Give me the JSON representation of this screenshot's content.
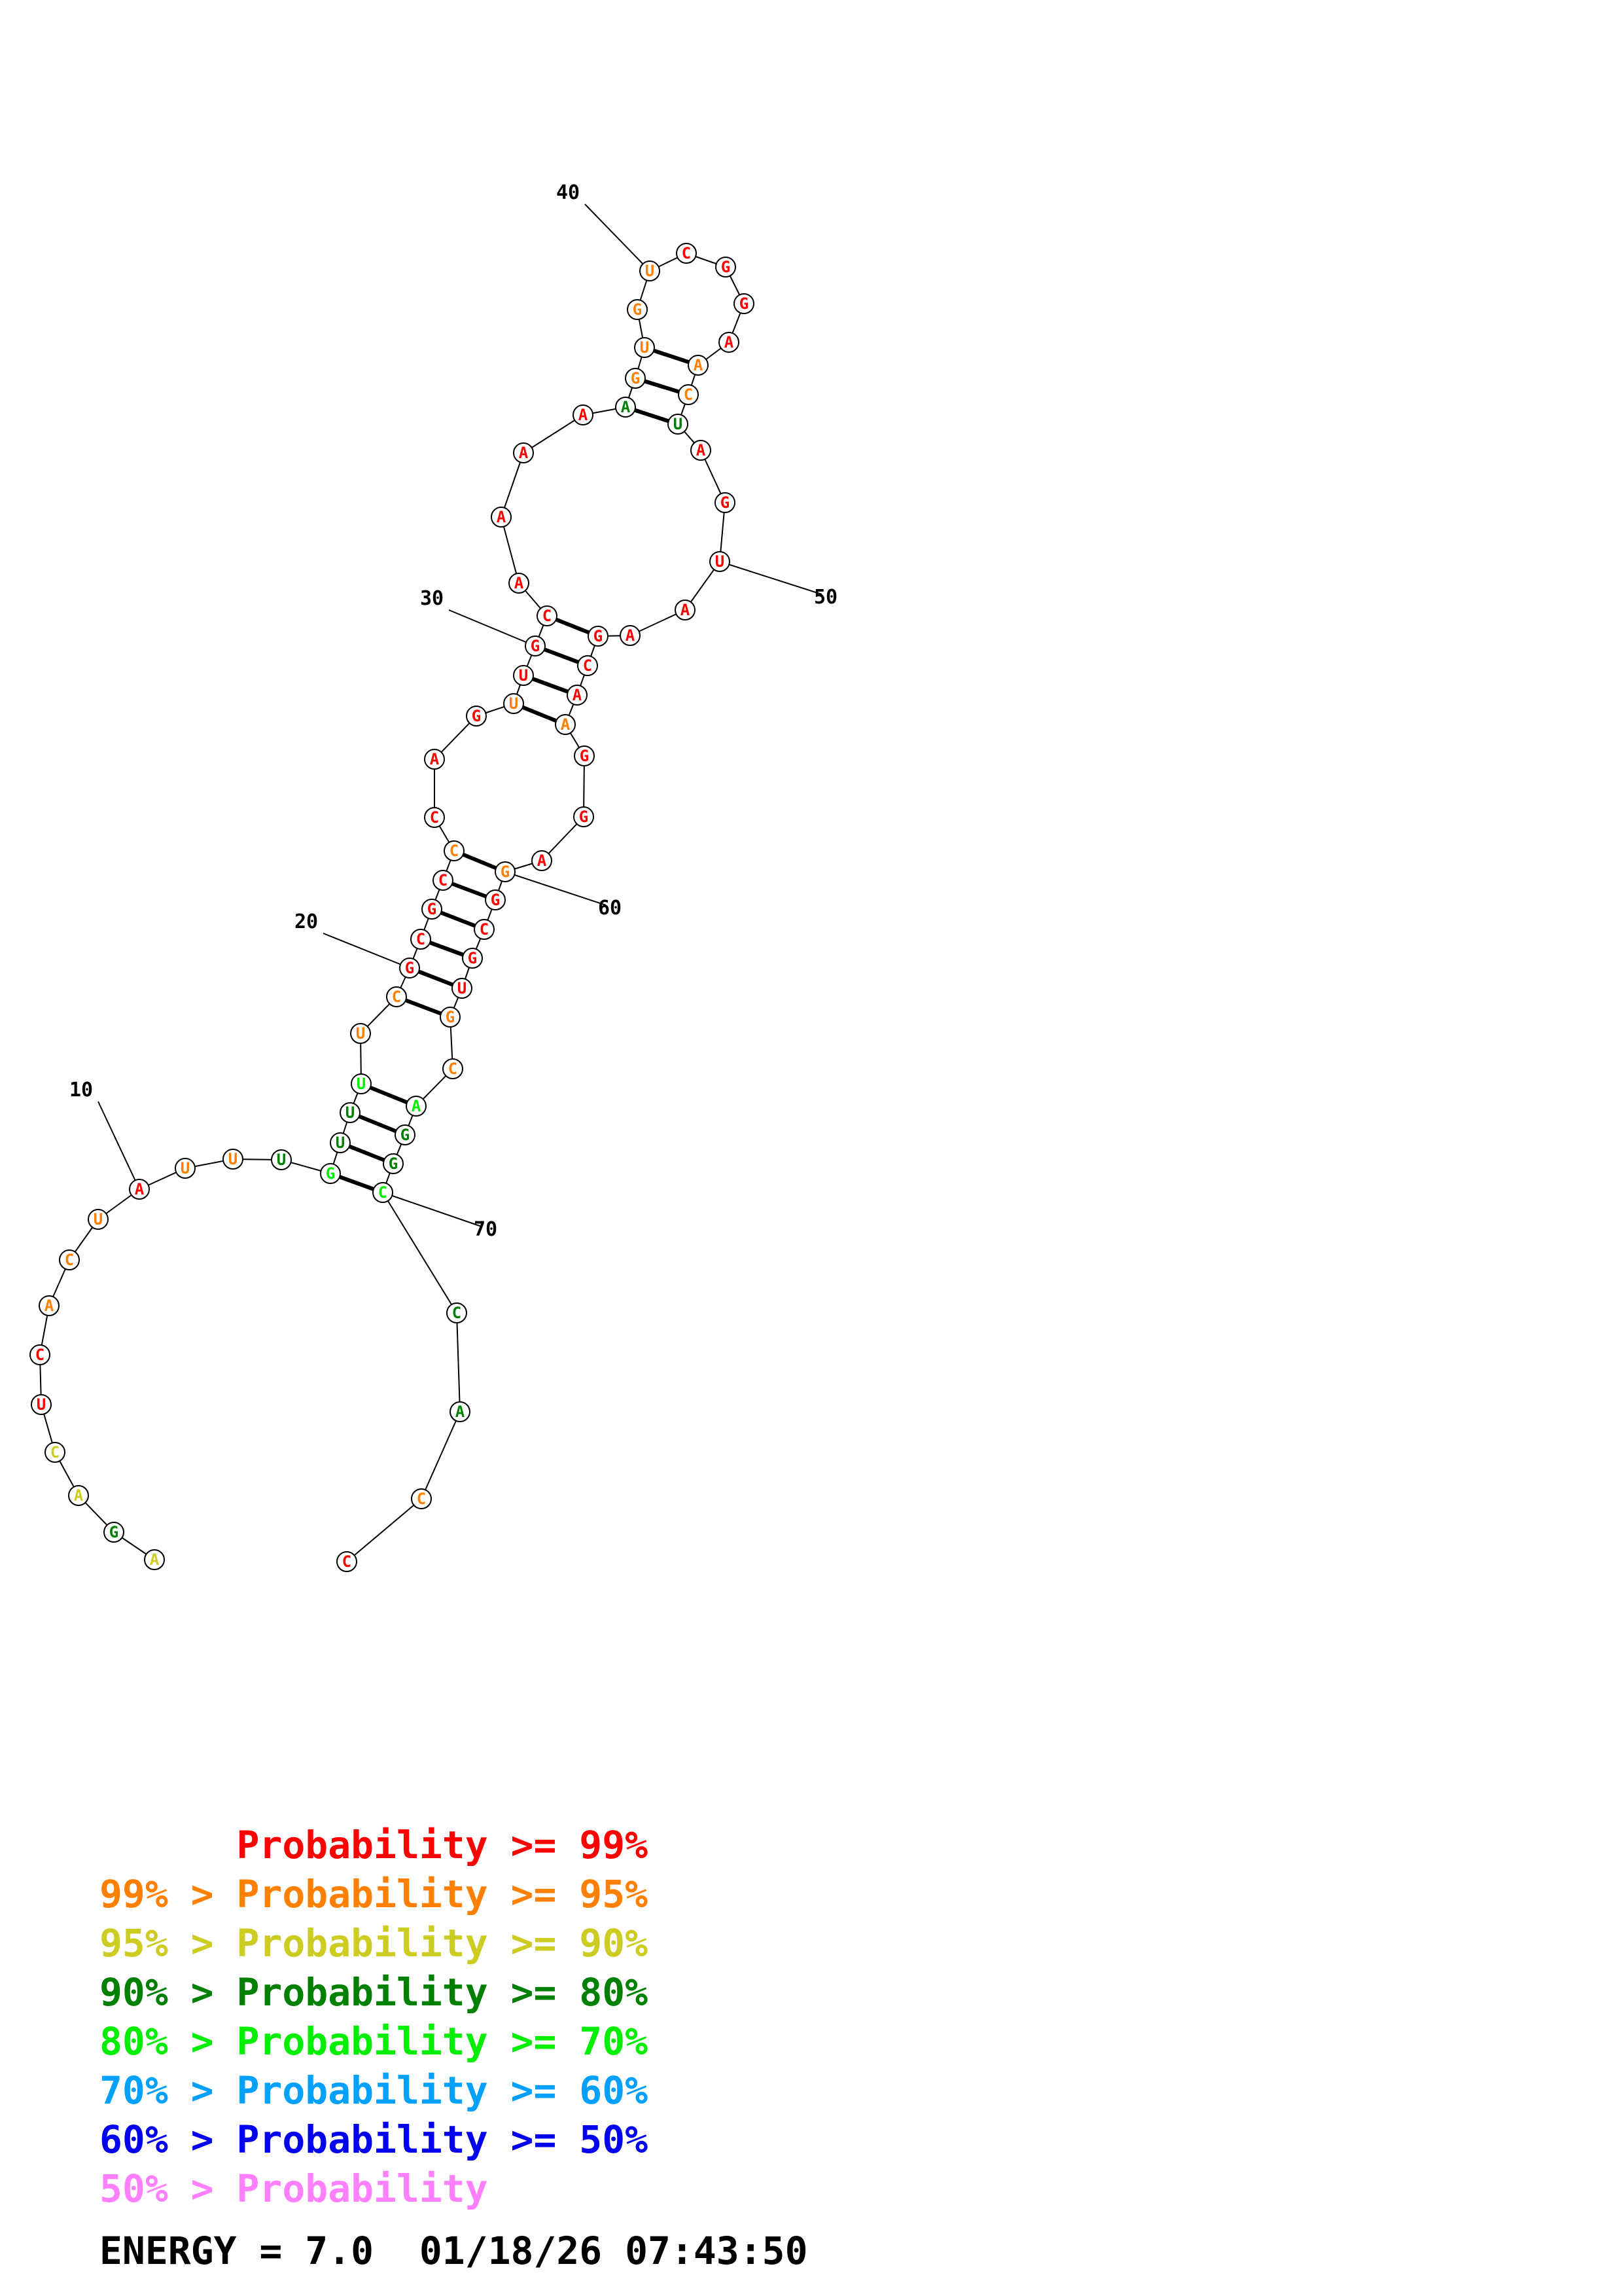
{
  "nucleotides": [
    {
      "n": 1,
      "b": "A",
      "c": "yellow"
    },
    {
      "n": 2,
      "b": "G",
      "c": "dgreen"
    },
    {
      "n": 3,
      "b": "A",
      "c": "yellow"
    },
    {
      "n": 4,
      "b": "C",
      "c": "yellow"
    },
    {
      "n": 5,
      "b": "U",
      "c": "red"
    },
    {
      "n": 6,
      "b": "C",
      "c": "red"
    },
    {
      "n": 7,
      "b": "A",
      "c": "orange"
    },
    {
      "n": 8,
      "b": "C",
      "c": "orange"
    },
    {
      "n": 9,
      "b": "U",
      "c": "orange"
    },
    {
      "n": 10,
      "b": "A",
      "c": "red"
    },
    {
      "n": 11,
      "b": "U",
      "c": "orange"
    },
    {
      "n": 12,
      "b": "U",
      "c": "orange"
    },
    {
      "n": 13,
      "b": "U",
      "c": "dgreen"
    },
    {
      "n": 14,
      "b": "G",
      "c": "lgreen"
    },
    {
      "n": 15,
      "b": "U",
      "c": "dgreen"
    },
    {
      "n": 16,
      "b": "U",
      "c": "dgreen"
    },
    {
      "n": 17,
      "b": "U",
      "c": "lgreen"
    },
    {
      "n": 18,
      "b": "U",
      "c": "orange"
    },
    {
      "n": 19,
      "b": "C",
      "c": "orange"
    },
    {
      "n": 20,
      "b": "G",
      "c": "red"
    },
    {
      "n": 21,
      "b": "C",
      "c": "red"
    },
    {
      "n": 22,
      "b": "G",
      "c": "red"
    },
    {
      "n": 23,
      "b": "C",
      "c": "red"
    },
    {
      "n": 24,
      "b": "C",
      "c": "orange"
    },
    {
      "n": 25,
      "b": "C",
      "c": "red"
    },
    {
      "n": 26,
      "b": "A",
      "c": "red"
    },
    {
      "n": 27,
      "b": "G",
      "c": "red"
    },
    {
      "n": 28,
      "b": "U",
      "c": "orange"
    },
    {
      "n": 29,
      "b": "U",
      "c": "red"
    },
    {
      "n": 30,
      "b": "G",
      "c": "red"
    },
    {
      "n": 31,
      "b": "C",
      "c": "red"
    },
    {
      "n": 32,
      "b": "A",
      "c": "red"
    },
    {
      "n": 33,
      "b": "A",
      "c": "red"
    },
    {
      "n": 34,
      "b": "A",
      "c": "red"
    },
    {
      "n": 35,
      "b": "A",
      "c": "red"
    },
    {
      "n": 36,
      "b": "A",
      "c": "dgreen"
    },
    {
      "n": 37,
      "b": "G",
      "c": "orange"
    },
    {
      "n": 38,
      "b": "U",
      "c": "orange"
    },
    {
      "n": 39,
      "b": "G",
      "c": "orange"
    },
    {
      "n": 40,
      "b": "U",
      "c": "orange"
    },
    {
      "n": 41,
      "b": "C",
      "c": "red"
    },
    {
      "n": 42,
      "b": "G",
      "c": "red"
    },
    {
      "n": 43,
      "b": "G",
      "c": "red"
    },
    {
      "n": 44,
      "b": "A",
      "c": "red"
    },
    {
      "n": 45,
      "b": "A",
      "c": "orange"
    },
    {
      "n": 46,
      "b": "C",
      "c": "orange"
    },
    {
      "n": 47,
      "b": "U",
      "c": "dgreen"
    },
    {
      "n": 48,
      "b": "A",
      "c": "red"
    },
    {
      "n": 49,
      "b": "G",
      "c": "red"
    },
    {
      "n": 50,
      "b": "U",
      "c": "red"
    },
    {
      "n": 51,
      "b": "A",
      "c": "red"
    },
    {
      "n": 52,
      "b": "A",
      "c": "red"
    },
    {
      "n": 53,
      "b": "G",
      "c": "red"
    },
    {
      "n": 54,
      "b": "C",
      "c": "red"
    },
    {
      "n": 55,
      "b": "A",
      "c": "red"
    },
    {
      "n": 56,
      "b": "A",
      "c": "orange"
    },
    {
      "n": 57,
      "b": "G",
      "c": "red"
    },
    {
      "n": 58,
      "b": "G",
      "c": "red"
    },
    {
      "n": 59,
      "b": "A",
      "c": "red"
    },
    {
      "n": 60,
      "b": "G",
      "c": "orange"
    },
    {
      "n": 61,
      "b": "G",
      "c": "red"
    },
    {
      "n": 62,
      "b": "C",
      "c": "red"
    },
    {
      "n": 63,
      "b": "G",
      "c": "red"
    },
    {
      "n": 64,
      "b": "U",
      "c": "red"
    },
    {
      "n": 65,
      "b": "G",
      "c": "orange"
    },
    {
      "n": 66,
      "b": "C",
      "c": "orange"
    },
    {
      "n": 67,
      "b": "A",
      "c": "lgreen"
    },
    {
      "n": 68,
      "b": "G",
      "c": "dgreen"
    },
    {
      "n": 69,
      "b": "G",
      "c": "dgreen"
    },
    {
      "n": 70,
      "b": "C",
      "c": "lgreen"
    },
    {
      "n": 71,
      "b": "C",
      "c": "dgreen"
    },
    {
      "n": 72,
      "b": "A",
      "c": "dgreen"
    },
    {
      "n": 73,
      "b": "C",
      "c": "orange"
    },
    {
      "n": 74,
      "b": "C",
      "c": "red"
    }
  ],
  "base_pairs": [
    [
      14,
      70
    ],
    [
      15,
      69
    ],
    [
      16,
      68
    ],
    [
      17,
      67
    ],
    [
      19,
      65
    ],
    [
      20,
      64
    ],
    [
      21,
      63
    ],
    [
      22,
      62
    ],
    [
      23,
      61
    ],
    [
      24,
      60
    ],
    [
      28,
      56
    ],
    [
      29,
      55
    ],
    [
      30,
      54
    ],
    [
      31,
      53
    ],
    [
      36,
      47
    ],
    [
      37,
      46
    ],
    [
      38,
      45
    ]
  ],
  "position_labels": [
    {
      "n": 10,
      "text": "10"
    },
    {
      "n": 20,
      "text": "20"
    },
    {
      "n": 30,
      "text": "30"
    },
    {
      "n": 40,
      "text": "40"
    },
    {
      "n": 50,
      "text": "50"
    },
    {
      "n": 60,
      "text": "60"
    },
    {
      "n": 70,
      "text": "70"
    }
  ],
  "colors": {
    "red": "#ff0000",
    "orange": "#ff8000",
    "yellow": "#cccc22",
    "dgreen": "#008000",
    "lgreen": "#00ee00",
    "cyan": "#00a0ff",
    "blue": "#0000ee",
    "pink": "#ff80ff"
  },
  "legend": [
    {
      "text": "      Probability >= 99%",
      "color": "#ff0000"
    },
    {
      "text": "99% > Probability >= 95%",
      "color": "#ff8000"
    },
    {
      "text": "95% > Probability >= 90%",
      "color": "#cccc22"
    },
    {
      "text": "90% > Probability >= 80%",
      "color": "#008000"
    },
    {
      "text": "80% > Probability >= 70%",
      "color": "#00ee00"
    },
    {
      "text": "70% > Probability >= 60%",
      "color": "#00a0ff"
    },
    {
      "text": "60% > Probability >= 50%",
      "color": "#0000ee"
    },
    {
      "text": "50% > Probability",
      "color": "#ff80ff"
    }
  ],
  "energy_text": "ENERGY = 7.0  01/18/26 07:43:50"
}
